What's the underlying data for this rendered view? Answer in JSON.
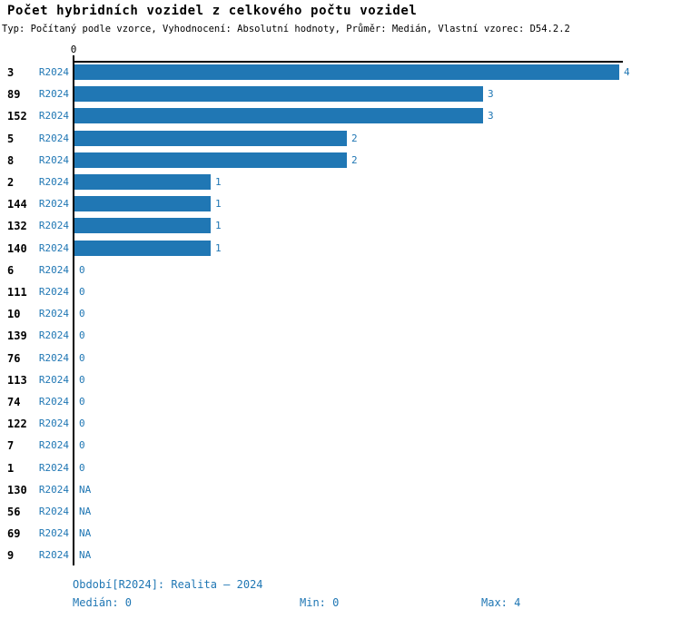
{
  "title": "Počet hybridních vozidel z celkového počtu vozidel",
  "subtitle": "Typ: Počítaný podle vzorce, Vyhodnocení: Absolutní hodnoty, Průměr: Medián, Vlastní vzorec: D54.2.2",
  "axis": {
    "zero_label": "0"
  },
  "colors": {
    "bar": "#2077b4",
    "value_text": "#2077b4",
    "series_text": "#2077b4",
    "footer_text": "#2077b4",
    "axis_line": "#000000",
    "title_text": "#000000"
  },
  "chart_data": {
    "type": "bar",
    "orientation": "horizontal",
    "title": "Počet hybridních vozidel z celkového počtu vozidel",
    "categories": [
      "3",
      "89",
      "152",
      "5",
      "8",
      "2",
      "144",
      "132",
      "140",
      "6",
      "111",
      "10",
      "139",
      "76",
      "113",
      "74",
      "122",
      "7",
      "1",
      "130",
      "56",
      "69",
      "9"
    ],
    "series": [
      {
        "name": "R2024",
        "values": [
          4,
          3,
          3,
          2,
          2,
          1,
          1,
          1,
          1,
          0,
          0,
          0,
          0,
          0,
          0,
          0,
          0,
          0,
          0,
          null,
          null,
          null,
          null
        ]
      }
    ],
    "value_labels": [
      "4",
      "3",
      "3",
      "2",
      "2",
      "1",
      "1",
      "1",
      "1",
      "0",
      "0",
      "0",
      "0",
      "0",
      "0",
      "0",
      "0",
      "0",
      "0",
      "NA",
      "NA",
      "NA",
      "NA"
    ],
    "xlim": [
      0,
      4
    ],
    "grid": false,
    "legend": false
  },
  "footer": {
    "period": "Období[R2024]: Realita – 2024",
    "median": "Medián: 0",
    "min": "Min: 0",
    "max": "Max: 4"
  }
}
